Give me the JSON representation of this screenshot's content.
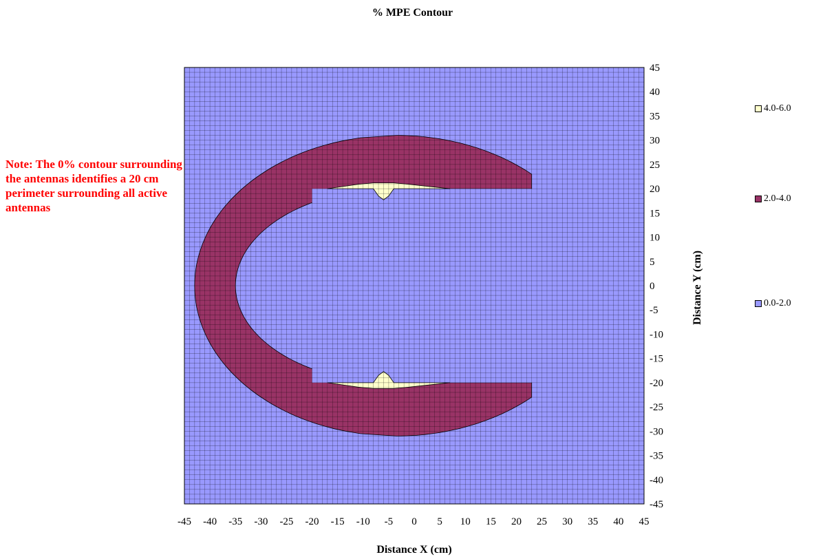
{
  "chart_data": {
    "type": "heatmap",
    "title": "% MPE Contour",
    "xlabel": "Distance X (cm)",
    "ylabel": "Distance Y (cm)",
    "xlim": [
      -45,
      45
    ],
    "ylim": [
      -45,
      45
    ],
    "x_ticks": [
      "-45",
      "-40",
      "-35",
      "-30",
      "-25",
      "-20",
      "-15",
      "-10",
      "-5",
      "0",
      "5",
      "10",
      "15",
      "20",
      "25",
      "30",
      "35",
      "40",
      "45"
    ],
    "y_ticks": [
      "45",
      "40",
      "35",
      "30",
      "25",
      "20",
      "15",
      "10",
      "5",
      "0",
      "-5",
      "-10",
      "-15",
      "-20",
      "-25",
      "-30",
      "-35",
      "-40",
      "-45"
    ],
    "grid": true,
    "grid_step": 1,
    "legend_placement": "right",
    "legend": [
      {
        "label": "4.0-6.0",
        "range": [
          4.0,
          6.0
        ],
        "color": "#ffffcc"
      },
      {
        "label": "2.0-4.0",
        "range": [
          2.0,
          4.0
        ],
        "color": "#993366"
      },
      {
        "label": "0.0-2.0",
        "range": [
          0.0,
          2.0
        ],
        "color": "#9999ff"
      }
    ],
    "regions": [
      {
        "band": "2.0-4.0",
        "shape": "crescent",
        "outer_center": [
          -3.5,
          0
        ],
        "outer_radii": [
          39.5,
          31
        ],
        "inner_center": [
          -4,
          0
        ],
        "inner_radii": [
          31,
          20
        ],
        "x_max": 23
      },
      {
        "band": "4.0-6.0",
        "shape": "lens",
        "x_range": [
          -17,
          7
        ],
        "y_center": 20,
        "peak_x": -6,
        "peak_y": 21.2
      },
      {
        "band": "4.0-6.0",
        "shape": "lens",
        "x_range": [
          -17,
          7
        ],
        "y_center": -20,
        "peak_x": -6,
        "peak_y": -17.2
      }
    ],
    "annotations": [
      "Note: The 0% contour surrounding the antennas identifies a 20 cm perimeter surrounding all active antennas"
    ]
  },
  "note_text": "Note: The 0% contour surrounding the antennas identifies a 20 cm perimeter surrounding all active antennas"
}
